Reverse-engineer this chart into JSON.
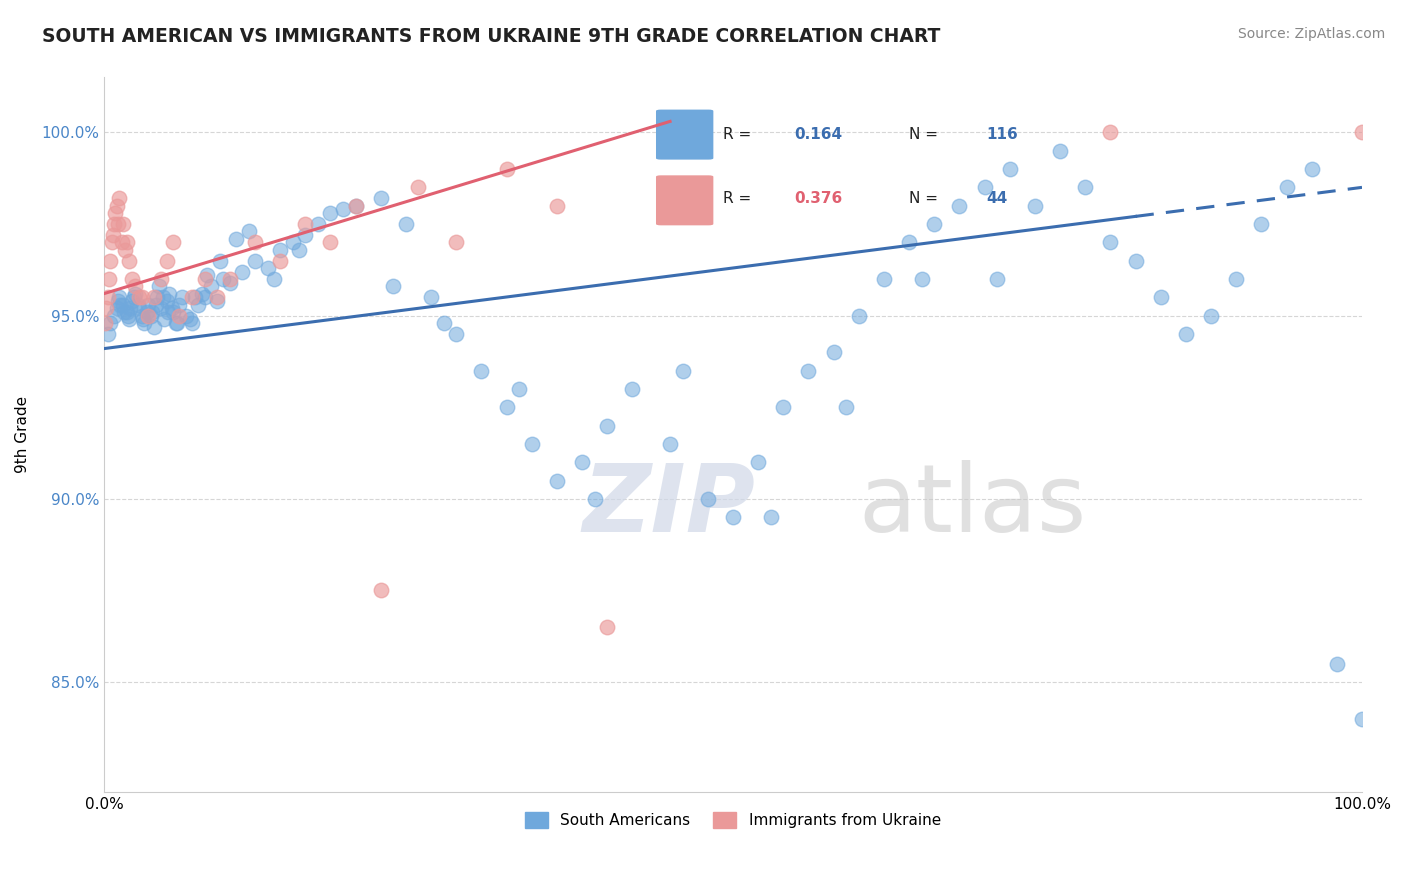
{
  "title": "SOUTH AMERICAN VS IMMIGRANTS FROM UKRAINE 9TH GRADE CORRELATION CHART",
  "source_text": "Source: ZipAtlas.com",
  "ylabel": "9th Grade",
  "watermark_zip": "ZIP",
  "watermark_atlas": "atlas",
  "xmin": 0.0,
  "xmax": 100.0,
  "ymin": 82.0,
  "ymax": 101.5,
  "yticks": [
    85.0,
    90.0,
    95.0,
    100.0
  ],
  "ytick_labels": [
    "85.0%",
    "90.0%",
    "95.0%",
    "100.0%"
  ],
  "xtick_labels": [
    "0.0%",
    "100.0%"
  ],
  "blue_color": "#6fa8dc",
  "pink_color": "#ea9999",
  "blue_line_color": "#3b6daf",
  "pink_line_color": "#e06070",
  "blue_r": "0.164",
  "blue_n": "116",
  "pink_r": "0.376",
  "pink_n": "44",
  "blue_scatter_x": [
    0.3,
    0.5,
    0.8,
    1.0,
    1.1,
    1.2,
    1.3,
    1.5,
    1.6,
    1.8,
    1.9,
    2.0,
    2.1,
    2.2,
    2.4,
    2.5,
    2.7,
    2.8,
    3.0,
    3.1,
    3.2,
    3.4,
    3.5,
    3.7,
    3.8,
    4.0,
    4.1,
    4.2,
    4.4,
    4.5,
    4.7,
    4.8,
    5.0,
    5.1,
    5.2,
    5.4,
    5.5,
    5.7,
    5.8,
    6.0,
    6.2,
    6.5,
    6.8,
    7.0,
    7.2,
    7.5,
    7.8,
    8.0,
    8.2,
    8.5,
    9.0,
    9.2,
    9.5,
    10.0,
    10.5,
    11.0,
    11.5,
    12.0,
    13.0,
    13.5,
    14.0,
    15.0,
    15.5,
    16.0,
    17.0,
    18.0,
    19.0,
    20.0,
    22.0,
    23.0,
    24.0,
    26.0,
    27.0,
    28.0,
    30.0,
    32.0,
    33.0,
    34.0,
    36.0,
    38.0,
    39.0,
    40.0,
    42.0,
    45.0,
    46.0,
    48.0,
    50.0,
    52.0,
    53.0,
    54.0,
    56.0,
    58.0,
    59.0,
    60.0,
    62.0,
    64.0,
    65.0,
    66.0,
    68.0,
    70.0,
    71.0,
    72.0,
    74.0,
    76.0,
    78.0,
    80.0,
    82.0,
    84.0,
    86.0,
    88.0,
    90.0,
    92.0,
    94.0,
    96.0,
    98.0,
    100.0
  ],
  "blue_scatter_y": [
    94.5,
    94.8,
    95.0,
    95.2,
    95.4,
    95.5,
    95.3,
    95.3,
    95.1,
    95.1,
    95.0,
    94.9,
    95.2,
    95.4,
    95.5,
    95.6,
    95.3,
    95.2,
    95.0,
    94.9,
    94.8,
    95.1,
    95.3,
    95.0,
    95.1,
    94.7,
    95.3,
    95.5,
    95.8,
    95.2,
    95.5,
    94.9,
    95.4,
    95.1,
    95.6,
    95.2,
    95.1,
    94.8,
    94.8,
    95.3,
    95.5,
    95.0,
    94.9,
    94.8,
    95.5,
    95.3,
    95.6,
    95.5,
    96.1,
    95.8,
    95.4,
    96.5,
    96.0,
    95.9,
    97.1,
    96.2,
    97.3,
    96.5,
    96.3,
    96.0,
    96.8,
    97.0,
    96.8,
    97.2,
    97.5,
    97.8,
    97.9,
    98.0,
    98.2,
    95.8,
    97.5,
    95.5,
    94.8,
    94.5,
    93.5,
    92.5,
    93.0,
    91.5,
    90.5,
    91.0,
    90.0,
    92.0,
    93.0,
    91.5,
    93.5,
    90.0,
    89.5,
    91.0,
    89.5,
    92.5,
    93.5,
    94.0,
    92.5,
    95.0,
    96.0,
    97.0,
    96.0,
    97.5,
    98.0,
    98.5,
    96.0,
    99.0,
    98.0,
    99.5,
    98.5,
    97.0,
    96.5,
    95.5,
    94.5,
    95.0,
    96.0,
    97.5,
    98.5,
    99.0,
    85.5,
    84.0
  ],
  "pink_scatter_x": [
    0.1,
    0.2,
    0.3,
    0.4,
    0.5,
    0.6,
    0.7,
    0.8,
    0.9,
    1.0,
    1.1,
    1.2,
    1.4,
    1.5,
    1.7,
    1.8,
    2.0,
    2.2,
    2.5,
    2.8,
    3.0,
    3.5,
    4.0,
    4.5,
    5.0,
    5.5,
    6.0,
    7.0,
    8.0,
    9.0,
    10.0,
    12.0,
    14.0,
    16.0,
    18.0,
    20.0,
    22.0,
    25.0,
    28.0,
    32.0,
    36.0,
    40.0,
    80.0,
    100.0
  ],
  "pink_scatter_y": [
    94.8,
    95.2,
    95.5,
    96.0,
    96.5,
    97.0,
    97.2,
    97.5,
    97.8,
    98.0,
    97.5,
    98.2,
    97.0,
    97.5,
    96.8,
    97.0,
    96.5,
    96.0,
    95.8,
    95.5,
    95.5,
    95.0,
    95.5,
    96.0,
    96.5,
    97.0,
    95.0,
    95.5,
    96.0,
    95.5,
    96.0,
    97.0,
    96.5,
    97.5,
    97.0,
    98.0,
    87.5,
    98.5,
    97.0,
    99.0,
    98.0,
    86.5,
    100.0,
    100.0
  ],
  "blue_trend_x": [
    0.0,
    100.0
  ],
  "blue_trend_y": [
    94.1,
    98.5
  ],
  "blue_solid_end": 82.0,
  "pink_trend_x": [
    0.0,
    45.0
  ],
  "pink_trend_y": [
    95.6,
    100.3
  ]
}
